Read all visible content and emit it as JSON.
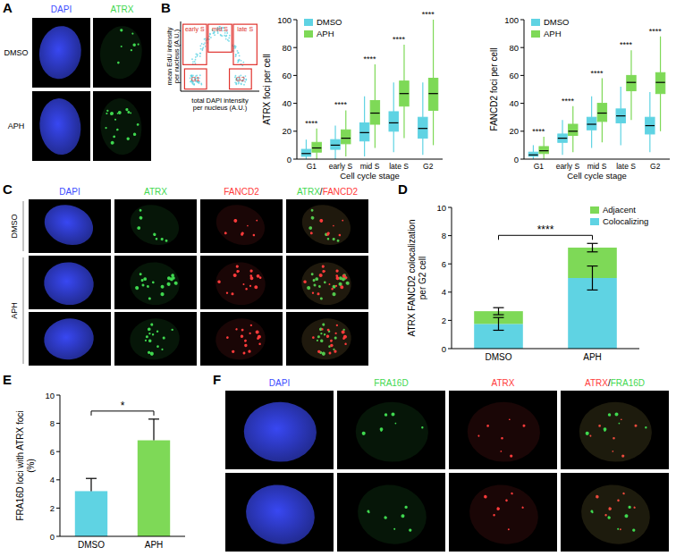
{
  "panel_labels": [
    "A",
    "B",
    "C",
    "D",
    "E",
    "F"
  ],
  "panel_a": {
    "columns": [
      "DAPI",
      "ATRX"
    ],
    "rows": [
      "DMSO",
      "APH"
    ],
    "channel_colors": {
      "DAPI": "#3b4bff",
      "ATRX": "#3fd84f"
    }
  },
  "panel_b_gating": {
    "y_label": "mean EdU intensity per nucleus (A.U.)",
    "x_label": "total DAPI intensity per nucleus (A.U.)",
    "gates": [
      "early S",
      "mid S",
      "late S",
      "G1",
      "G2"
    ],
    "color": "#e0342f"
  },
  "panel_c": {
    "columns": [
      "DAPI",
      "ATRX",
      "FANCD2",
      "ATRX/FANCD2"
    ],
    "rows": [
      "DMSO",
      "APH"
    ],
    "channel_colors": {
      "DAPI": "#3b4bff",
      "ATRX": "#3fd84f",
      "FANCD2": "#ff3b3b"
    }
  },
  "panel_f": {
    "columns": [
      "DAPI",
      "FRA16D",
      "ATRX",
      "ATRX/FRA16D"
    ],
    "channel_colors": {
      "DAPI": "#3b4bff",
      "FRA16D": "#3fd84f",
      "ATRX": "#ff3b3b"
    }
  },
  "chart_data": [
    {
      "type": "box",
      "y_label": "ATRX foci per cell",
      "x_label": "Cell cycle stage",
      "categories": [
        "G1",
        "early S",
        "mid S",
        "late S",
        "G2"
      ],
      "ylim": [
        0,
        100
      ],
      "yticks": [
        0,
        20,
        40,
        60,
        80,
        100
      ],
      "legend": "upper left",
      "series": [
        {
          "name": "DMSO",
          "color": "#5fd3e3",
          "min": [
            0,
            0,
            2,
            5,
            3
          ],
          "q1": [
            2,
            7,
            13,
            20,
            15
          ],
          "median": [
            4,
            10,
            19,
            26,
            22
          ],
          "q3": [
            7,
            14,
            26,
            34,
            30
          ],
          "max": [
            14,
            24,
            45,
            55,
            55
          ]
        },
        {
          "name": "APH",
          "color": "#7ed957",
          "min": [
            0,
            2,
            8,
            15,
            10
          ],
          "q1": [
            5,
            11,
            25,
            38,
            35
          ],
          "median": [
            8,
            15,
            33,
            47,
            47
          ],
          "q3": [
            12,
            21,
            42,
            56,
            58
          ],
          "max": [
            22,
            35,
            68,
            82,
            100
          ]
        }
      ],
      "annotations": [
        "****",
        "****",
        "****",
        "****",
        "****"
      ]
    },
    {
      "type": "box",
      "y_label": "FANCD2 foci per cell",
      "x_label": "Cell cycle stage",
      "categories": [
        "G1",
        "early S",
        "mid S",
        "late S",
        "G2"
      ],
      "ylim": [
        0,
        100
      ],
      "yticks": [
        0,
        20,
        40,
        60,
        80,
        100
      ],
      "legend": "upper left",
      "series": [
        {
          "name": "DMSO",
          "color": "#5fd3e3",
          "min": [
            0,
            3,
            8,
            10,
            5
          ],
          "q1": [
            2,
            12,
            21,
            26,
            18
          ],
          "median": [
            3,
            15,
            25,
            31,
            24
          ],
          "q3": [
            5,
            18,
            30,
            36,
            30
          ],
          "max": [
            10,
            28,
            45,
            52,
            48
          ]
        },
        {
          "name": "APH",
          "color": "#7ed957",
          "min": [
            0,
            5,
            12,
            28,
            20
          ],
          "q1": [
            4,
            17,
            27,
            49,
            47
          ],
          "median": [
            6,
            20,
            33,
            55,
            55
          ],
          "q3": [
            9,
            25,
            40,
            60,
            62
          ],
          "max": [
            16,
            38,
            58,
            78,
            88
          ]
        }
      ],
      "annotations": [
        "****",
        "****",
        "****",
        "****",
        "****"
      ]
    },
    {
      "type": "bar",
      "stacked": true,
      "y_label": "ATRX FANCD2 colocalization per G2 cell",
      "categories": [
        "DMSO",
        "APH"
      ],
      "ylim": [
        0,
        10
      ],
      "yticks": [
        0,
        2,
        4,
        6,
        8,
        10
      ],
      "legend": "upper right",
      "series": [
        {
          "name": "Colocalizing",
          "color": "#5fd3e3",
          "values": [
            1.75,
            5.0
          ],
          "errors": [
            0.45,
            0.85
          ]
        },
        {
          "name": "Adjacent",
          "color": "#7ed957",
          "values": [
            0.9,
            2.15
          ],
          "errors": [
            0.25,
            0.3
          ]
        }
      ],
      "annotations": [
        "****"
      ]
    },
    {
      "type": "bar",
      "y_label": "FRA16D loci with ATRX foci (%)",
      "categories": [
        "DMSO",
        "APH"
      ],
      "values": [
        3.2,
        6.8
      ],
      "errors": [
        0.9,
        1.5
      ],
      "colors": [
        "#5fd3e3",
        "#7ed957"
      ],
      "ylim": [
        0,
        10
      ],
      "yticks": [
        0,
        2,
        4,
        6,
        8,
        10
      ],
      "annotations": [
        "*"
      ]
    }
  ]
}
